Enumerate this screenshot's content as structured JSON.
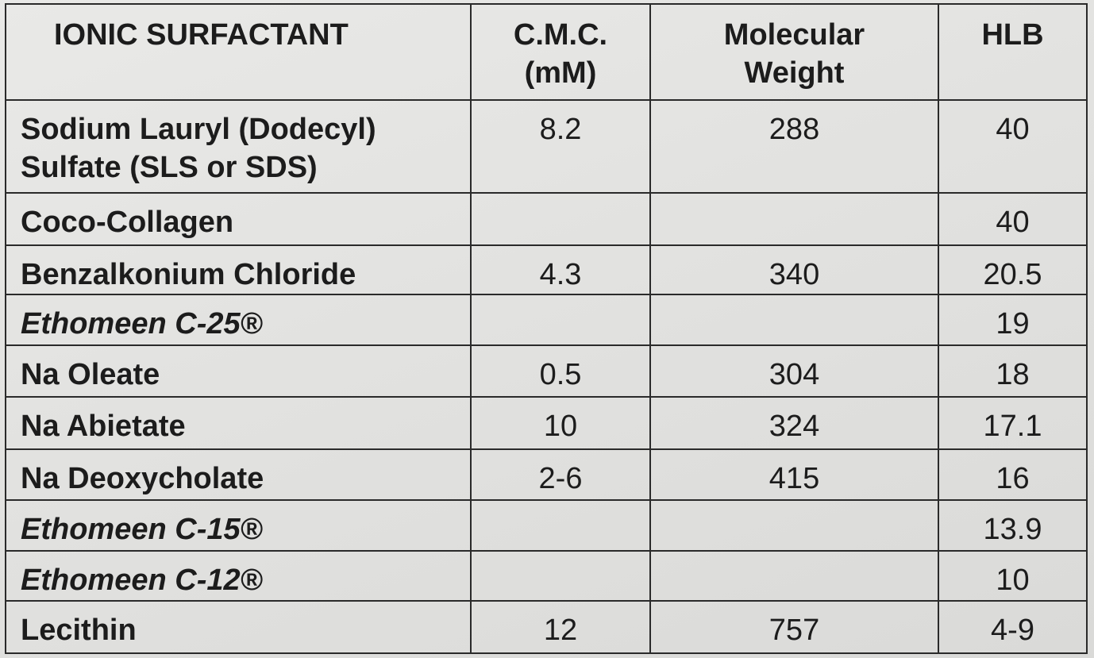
{
  "table": {
    "headers": {
      "surfactant": "IONIC SURFACTANT",
      "cmc": "C.M.C.\n(mM)",
      "mw": "Molecular\nWeight",
      "hlb": "HLB"
    },
    "rows": [
      {
        "name": "Sodium Lauryl (Dodecyl)\nSulfate (SLS or SDS)",
        "cmc": "8.2",
        "mw": "288",
        "hlb": "40",
        "italic": false
      },
      {
        "name": "Coco-Collagen",
        "cmc": "",
        "mw": "",
        "hlb": "40",
        "italic": false
      },
      {
        "name": "Benzalkonium Chloride",
        "cmc": "4.3",
        "mw": "340",
        "hlb": "20.5",
        "italic": false
      },
      {
        "name": "Ethomeen C-25®",
        "cmc": "",
        "mw": "",
        "hlb": "19",
        "italic": true
      },
      {
        "name": "Na Oleate",
        "cmc": "0.5",
        "mw": "304",
        "hlb": "18",
        "italic": false
      },
      {
        "name": "Na Abietate",
        "cmc": "10",
        "mw": "324",
        "hlb": "17.1",
        "italic": false
      },
      {
        "name": "Na Deoxycholate",
        "cmc": "2-6",
        "mw": "415",
        "hlb": "16",
        "italic": false
      },
      {
        "name": "Ethomeen C-15®",
        "cmc": "",
        "mw": "",
        "hlb": "13.9",
        "italic": true
      },
      {
        "name": "Ethomeen C-12®",
        "cmc": "",
        "mw": "",
        "hlb": "10",
        "italic": true
      },
      {
        "name": "Lecithin",
        "cmc": "12",
        "mw": "757",
        "hlb": "4-9",
        "italic": false
      }
    ]
  }
}
